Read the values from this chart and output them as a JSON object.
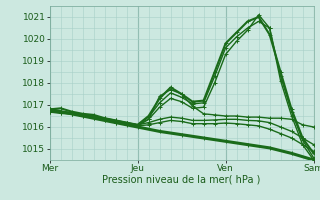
{
  "title": "",
  "xlabel": "Pression niveau de la mer( hPa )",
  "ylabel": "",
  "bg_color": "#cce8e0",
  "grid_color": "#a8cfc8",
  "line_color": "#1a6b1a",
  "xlim": [
    0,
    72
  ],
  "ylim": [
    1014.5,
    1021.5
  ],
  "yticks": [
    1015,
    1016,
    1017,
    1018,
    1019,
    1020,
    1021
  ],
  "xticks": [
    0,
    24,
    48,
    72
  ],
  "xticklabels": [
    "Mer",
    "Jeu",
    "Ven",
    "Sam"
  ],
  "series": [
    {
      "x": [
        0,
        3,
        6,
        9,
        12,
        15,
        18,
        21,
        24,
        27,
        30,
        33,
        36,
        39,
        42,
        45,
        48,
        51,
        54,
        57,
        60,
        63,
        66,
        69,
        72
      ],
      "y": [
        1016.8,
        1016.85,
        1016.7,
        1016.6,
        1016.55,
        1016.4,
        1016.3,
        1016.2,
        1016.1,
        1016.5,
        1017.3,
        1017.8,
        1017.5,
        1017.15,
        1017.2,
        1018.5,
        1019.8,
        1020.3,
        1020.8,
        1021.0,
        1020.2,
        1018.5,
        1016.8,
        1015.5,
        1014.8
      ],
      "marker": "+",
      "lw": 1.5
    },
    {
      "x": [
        0,
        3,
        6,
        9,
        12,
        15,
        18,
        21,
        24,
        27,
        30,
        33,
        36,
        39,
        42,
        45,
        48,
        51,
        54,
        57,
        60,
        63,
        66,
        69,
        72
      ],
      "y": [
        1016.75,
        1016.7,
        1016.65,
        1016.55,
        1016.5,
        1016.35,
        1016.25,
        1016.15,
        1016.1,
        1016.45,
        1017.1,
        1017.55,
        1017.35,
        1017.05,
        1017.1,
        1018.3,
        1019.6,
        1020.1,
        1020.5,
        1020.8,
        1020.5,
        1018.3,
        1016.7,
        1015.4,
        1014.6
      ],
      "marker": "+",
      "lw": 1.0
    },
    {
      "x": [
        0,
        3,
        6,
        9,
        12,
        15,
        18,
        21,
        24,
        27,
        30,
        33,
        36,
        39,
        42,
        45,
        48,
        51,
        54,
        57,
        60,
        63,
        66,
        69,
        72
      ],
      "y": [
        1016.7,
        1016.65,
        1016.6,
        1016.5,
        1016.45,
        1016.3,
        1016.2,
        1016.1,
        1016.05,
        1016.35,
        1016.9,
        1017.3,
        1017.15,
        1016.85,
        1016.9,
        1018.0,
        1019.3,
        1019.9,
        1020.4,
        1021.1,
        1020.5,
        1018.1,
        1016.5,
        1015.2,
        1014.5
      ],
      "marker": "+",
      "lw": 1.0
    },
    {
      "x": [
        0,
        3,
        6,
        9,
        12,
        15,
        18,
        21,
        24,
        27,
        30,
        33,
        36,
        39,
        42,
        45,
        48,
        51,
        54,
        57,
        60,
        63,
        66,
        69,
        72
      ],
      "y": [
        1016.75,
        1016.7,
        1016.65,
        1016.55,
        1016.5,
        1016.4,
        1016.3,
        1016.2,
        1016.1,
        1016.35,
        1017.4,
        1017.7,
        1017.5,
        1016.95,
        1016.6,
        1016.55,
        1016.5,
        1016.5,
        1016.45,
        1016.45,
        1016.4,
        1016.4,
        1016.35,
        1016.1,
        1016.0
      ],
      "marker": "+",
      "lw": 1.0
    },
    {
      "x": [
        0,
        3,
        6,
        9,
        12,
        15,
        18,
        21,
        24,
        27,
        30,
        33,
        36,
        39,
        42,
        45,
        48,
        51,
        54,
        57,
        60,
        63,
        66,
        69,
        72
      ],
      "y": [
        1016.72,
        1016.68,
        1016.63,
        1016.55,
        1016.48,
        1016.38,
        1016.28,
        1016.18,
        1016.1,
        1016.2,
        1016.35,
        1016.45,
        1016.4,
        1016.3,
        1016.3,
        1016.32,
        1016.35,
        1016.35,
        1016.3,
        1016.28,
        1016.2,
        1016.0,
        1015.8,
        1015.5,
        1015.2
      ],
      "marker": "+",
      "lw": 1.0
    },
    {
      "x": [
        0,
        3,
        6,
        9,
        12,
        15,
        18,
        21,
        24,
        27,
        30,
        33,
        36,
        39,
        42,
        45,
        48,
        51,
        54,
        57,
        60,
        63,
        66,
        69,
        72
      ],
      "y": [
        1016.68,
        1016.62,
        1016.58,
        1016.5,
        1016.43,
        1016.33,
        1016.23,
        1016.13,
        1016.05,
        1016.1,
        1016.2,
        1016.3,
        1016.25,
        1016.15,
        1016.15,
        1016.15,
        1016.18,
        1016.15,
        1016.1,
        1016.05,
        1015.9,
        1015.7,
        1015.5,
        1015.2,
        1014.9
      ],
      "marker": "+",
      "lw": 1.0
    },
    {
      "x": [
        0,
        6,
        12,
        18,
        24,
        30,
        36,
        42,
        48,
        54,
        60,
        66,
        72
      ],
      "y": [
        1016.8,
        1016.6,
        1016.4,
        1016.2,
        1016.0,
        1015.8,
        1015.65,
        1015.5,
        1015.35,
        1015.2,
        1015.05,
        1014.8,
        1014.5
      ],
      "marker": "+",
      "lw": 2.2
    }
  ]
}
